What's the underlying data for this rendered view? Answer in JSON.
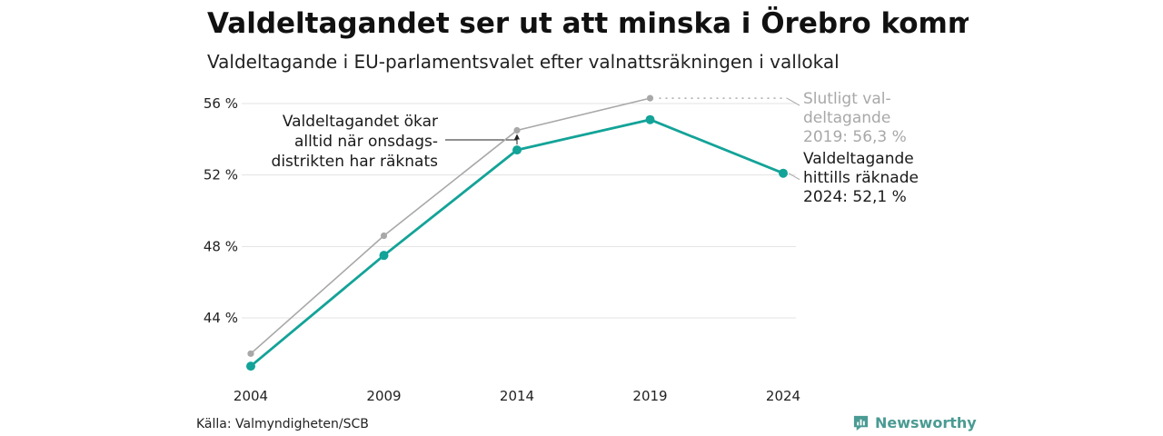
{
  "header": {
    "title": "Valdeltagandet ser ut att minska i Örebro kommun",
    "subtitle": "Valdeltagande i EU-parlamentsvalet efter valnattsräkningen i vallokal"
  },
  "footer": {
    "source": "Källa: Valmyndigheten/SCB",
    "brand": "Newsworthy"
  },
  "colors": {
    "current": "#13a398",
    "final": "#a8a8a8",
    "grid": "#e3e3e3",
    "brand": "#4a9b93"
  },
  "chart_data": {
    "type": "line",
    "x": [
      2004,
      2009,
      2014,
      2019,
      2024
    ],
    "x_tick_labels": [
      "2004",
      "2009",
      "2014",
      "2019",
      "2024"
    ],
    "y_ticks": [
      44,
      48,
      52,
      56
    ],
    "y_tick_labels": [
      "44 %",
      "48 %",
      "52 %",
      "56 %"
    ],
    "ylim": [
      40.8,
      56.8
    ],
    "grid": true,
    "series": [
      {
        "name": "",
        "role": "final",
        "values": [
          42.0,
          48.6,
          54.5,
          56.3,
          null
        ]
      },
      {
        "name": "",
        "role": "current",
        "values": [
          41.3,
          47.5,
          53.4,
          55.1,
          52.1
        ]
      }
    ],
    "annotations": {
      "final_label": [
        "Slutligt val-",
        "deltagande",
        "2019: 56,3 %"
      ],
      "current_label": [
        "Valdeltagande",
        "hittills räknade",
        "2024: 52,1 %"
      ],
      "wednesday_note": [
        "Valdeltagandet ökar",
        "alltid när onsdags-",
        "distrikten har räknats"
      ]
    }
  }
}
